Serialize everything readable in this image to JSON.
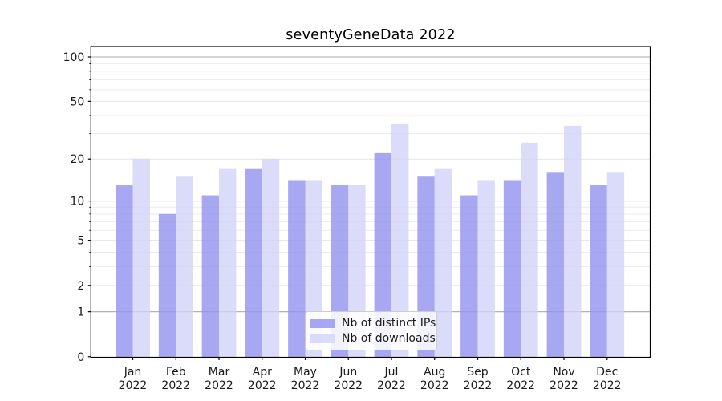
{
  "chart_data": {
    "type": "bar",
    "title": "seventyGeneData 2022",
    "categories": [
      "Jan 2022",
      "Feb 2022",
      "Mar 2022",
      "Apr 2022",
      "May 2022",
      "Jun 2022",
      "Jul 2022",
      "Aug 2022",
      "Sep 2022",
      "Oct 2022",
      "Nov 2022",
      "Dec 2022"
    ],
    "series": [
      {
        "name": "Nb of distinct IPs",
        "color": "#9191ef",
        "values": [
          13,
          8,
          11,
          17,
          14,
          13,
          22,
          15,
          11,
          14,
          16,
          13
        ]
      },
      {
        "name": "Nb of downloads",
        "color": "#d2d2f9",
        "values": [
          20,
          15,
          17,
          20,
          14,
          13,
          35,
          17,
          14,
          26,
          34,
          16
        ]
      }
    ],
    "bar_opacity": 0.8,
    "xlabel": "",
    "ylabel": "",
    "yscale": "log1p",
    "ylim": [
      0,
      118
    ],
    "yticks": [
      0,
      1,
      2,
      5,
      10,
      20,
      50,
      100
    ],
    "yticks_emphasized": [
      1,
      10,
      100
    ],
    "yticks_minor": [
      3,
      4,
      6,
      7,
      8,
      9,
      30,
      40,
      60,
      70,
      80,
      90
    ],
    "grid": "both",
    "legend": {
      "position": "lower center"
    },
    "colors": {
      "grid_major": "#aaaaaa",
      "grid_light": "#e4e4e4",
      "grid_minor": "#ececec",
      "spine": "#000000",
      "tick_text": "#1a1a1a",
      "background": "#ffffff"
    }
  }
}
